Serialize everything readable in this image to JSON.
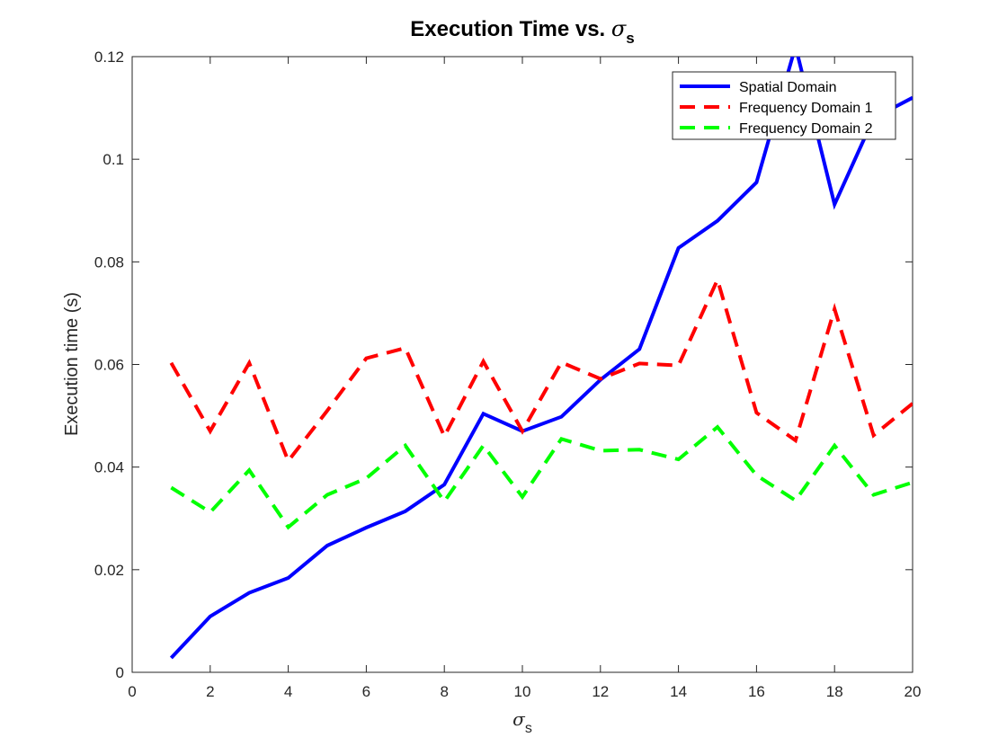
{
  "chart_data": {
    "type": "line",
    "title": {
      "main": "Execution Time vs. ",
      "symbol": "σ",
      "subscript": "s"
    },
    "xlabel": {
      "symbol": "σ",
      "subscript": "s"
    },
    "ylabel": "Execution time (s)",
    "xlim": [
      0,
      20
    ],
    "ylim": [
      0,
      0.12
    ],
    "xticks": [
      0,
      2,
      4,
      6,
      8,
      10,
      12,
      14,
      16,
      18,
      20
    ],
    "yticks": [
      0,
      0.02,
      0.04,
      0.06,
      0.08,
      0.1,
      0.12
    ],
    "xtick_labels": [
      "0",
      "2",
      "4",
      "6",
      "8",
      "10",
      "12",
      "14",
      "16",
      "18",
      "20"
    ],
    "ytick_labels": [
      "0",
      "0.02",
      "0.04",
      "0.06",
      "0.08",
      "0.1",
      "0.12"
    ],
    "grid": false,
    "legend_position": "top-right",
    "x": [
      1,
      2,
      3,
      4,
      5,
      6,
      7,
      8,
      9,
      10,
      11,
      12,
      13,
      14,
      15,
      16,
      17,
      18,
      19,
      20
    ],
    "series": [
      {
        "name": "Spatial Domain",
        "color": "#0000ff",
        "style": "solid",
        "values": [
          0.0028,
          0.0109,
          0.0155,
          0.0184,
          0.0247,
          0.0282,
          0.0314,
          0.0366,
          0.0504,
          0.047,
          0.0498,
          0.057,
          0.063,
          0.0827,
          0.088,
          0.0955,
          0.122,
          0.0912,
          0.108,
          0.112
        ]
      },
      {
        "name": "Frequency Domain 1",
        "color": "#ff0000",
        "style": "dashed",
        "values": [
          0.0603,
          0.047,
          0.0603,
          0.0412,
          0.051,
          0.0612,
          0.0632,
          0.046,
          0.0606,
          0.047,
          0.0604,
          0.0572,
          0.0602,
          0.0598,
          0.0765,
          0.0506,
          0.0452,
          0.0708,
          0.0462,
          0.0524
        ]
      },
      {
        "name": "Frequency Domain 2",
        "color": "#00ff00",
        "style": "dashed",
        "values": [
          0.036,
          0.0312,
          0.0394,
          0.0283,
          0.0346,
          0.0378,
          0.0442,
          0.0333,
          0.0442,
          0.0342,
          0.0455,
          0.0432,
          0.0434,
          0.0415,
          0.0478,
          0.0384,
          0.0335,
          0.0442,
          0.0346,
          0.037
        ]
      }
    ]
  }
}
